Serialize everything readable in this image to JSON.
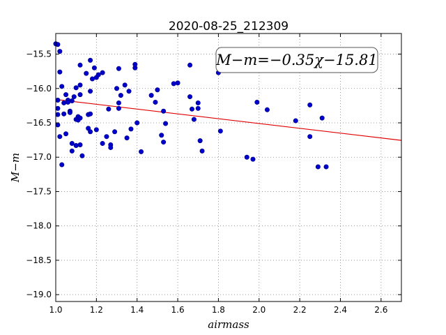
{
  "chart_data": {
    "type": "scatter",
    "title": "2020-08-25_212309",
    "xlabel": "airmass",
    "ylabel": "M−m",
    "xlim": [
      1.0,
      2.7
    ],
    "ylim": [
      -19.1,
      -15.2
    ],
    "xticks": [
      1.0,
      1.2,
      1.4,
      1.6,
      1.8,
      2.0,
      2.2,
      2.4,
      2.6
    ],
    "yticks": [
      -15.5,
      -16.0,
      -16.5,
      -17.0,
      -17.5,
      -18.0,
      -18.5,
      -19.0
    ],
    "xtick_labels": [
      "1.0",
      "1.2",
      "1.4",
      "1.6",
      "1.8",
      "2.0",
      "2.2",
      "2.4",
      "2.6"
    ],
    "ytick_labels": [
      "−15.5",
      "−16.0",
      "−16.5",
      "−17.0",
      "−17.5",
      "−18.0",
      "−18.5",
      "−19.0"
    ],
    "grid": true,
    "annotation": "M−m=−0.35χ−15.81",
    "fit": {
      "slope": -0.35,
      "intercept": -15.81,
      "color": "#e00000"
    },
    "marker_color": "#0000cc",
    "series": [
      {
        "points": [
          [
            1.0,
            -15.35
          ],
          [
            1.01,
            -15.36
          ],
          [
            1.02,
            -15.46
          ],
          [
            1.02,
            -15.76
          ],
          [
            1.03,
            -15.97
          ],
          [
            1.01,
            -16.17
          ],
          [
            1.01,
            -16.29
          ],
          [
            1.01,
            -16.38
          ],
          [
            1.01,
            -16.53
          ],
          [
            1.02,
            -16.7
          ],
          [
            1.03,
            -17.11
          ],
          [
            1.04,
            -16.37
          ],
          [
            1.04,
            -16.21
          ],
          [
            1.05,
            -16.09
          ],
          [
            1.05,
            -16.66
          ],
          [
            1.06,
            -16.17
          ],
          [
            1.06,
            -16.2
          ],
          [
            1.07,
            -16.33
          ],
          [
            1.07,
            -16.35
          ],
          [
            1.08,
            -16.18
          ],
          [
            1.08,
            -16.91
          ],
          [
            1.08,
            -16.8
          ],
          [
            1.09,
            -16.12
          ],
          [
            1.1,
            -16.45
          ],
          [
            1.1,
            -16.83
          ],
          [
            1.1,
            -15.99
          ],
          [
            1.11,
            -16.41
          ],
          [
            1.11,
            -16.45
          ],
          [
            1.11,
            -16.46
          ],
          [
            1.12,
            -16.43
          ],
          [
            1.12,
            -16.82
          ],
          [
            1.12,
            -16.09
          ],
          [
            1.12,
            -15.95
          ],
          [
            1.12,
            -15.66
          ],
          [
            1.13,
            -16.98
          ],
          [
            1.15,
            -15.78
          ],
          [
            1.16,
            -16.38
          ],
          [
            1.16,
            -16.58
          ],
          [
            1.17,
            -16.63
          ],
          [
            1.17,
            -16.04
          ],
          [
            1.17,
            -15.59
          ],
          [
            1.17,
            -16.37
          ],
          [
            1.18,
            -15.86
          ],
          [
            1.19,
            -15.7
          ],
          [
            1.2,
            -16.6
          ],
          [
            1.2,
            -15.84
          ],
          [
            1.21,
            -15.8
          ],
          [
            1.23,
            -15.77
          ],
          [
            1.23,
            -16.8
          ],
          [
            1.25,
            -16.7
          ],
          [
            1.26,
            -16.3
          ],
          [
            1.27,
            -16.82
          ],
          [
            1.27,
            -16.86
          ],
          [
            1.29,
            -16.63
          ],
          [
            1.3,
            -16.0
          ],
          [
            1.31,
            -15.71
          ],
          [
            1.31,
            -16.21
          ],
          [
            1.31,
            -16.29
          ],
          [
            1.32,
            -16.1
          ],
          [
            1.34,
            -15.95
          ],
          [
            1.35,
            -16.72
          ],
          [
            1.36,
            -16.04
          ],
          [
            1.37,
            -16.59
          ],
          [
            1.39,
            -15.7
          ],
          [
            1.39,
            -15.65
          ],
          [
            1.4,
            -16.5
          ],
          [
            1.42,
            -16.92
          ],
          [
            1.47,
            -16.1
          ],
          [
            1.49,
            -16.2
          ],
          [
            1.5,
            -16.02
          ],
          [
            1.52,
            -16.68
          ],
          [
            1.53,
            -16.33
          ],
          [
            1.53,
            -16.78
          ],
          [
            1.54,
            -16.51
          ],
          [
            1.58,
            -15.93
          ],
          [
            1.6,
            -15.92
          ],
          [
            1.66,
            -16.12
          ],
          [
            1.66,
            -15.66
          ],
          [
            1.67,
            -16.3
          ],
          [
            1.68,
            -16.45
          ],
          [
            1.7,
            -16.21
          ],
          [
            1.7,
            -16.29
          ],
          [
            1.71,
            -16.76
          ],
          [
            1.72,
            -16.91
          ],
          [
            1.8,
            -15.77
          ],
          [
            1.81,
            -16.62
          ],
          [
            1.94,
            -17.0
          ],
          [
            1.97,
            -17.03
          ],
          [
            1.99,
            -16.2
          ],
          [
            2.04,
            -16.31
          ],
          [
            2.18,
            -16.47
          ],
          [
            2.25,
            -16.24
          ],
          [
            2.25,
            -16.7
          ],
          [
            2.29,
            -17.14
          ],
          [
            2.31,
            -16.43
          ],
          [
            2.33,
            -17.14
          ]
        ]
      }
    ]
  }
}
